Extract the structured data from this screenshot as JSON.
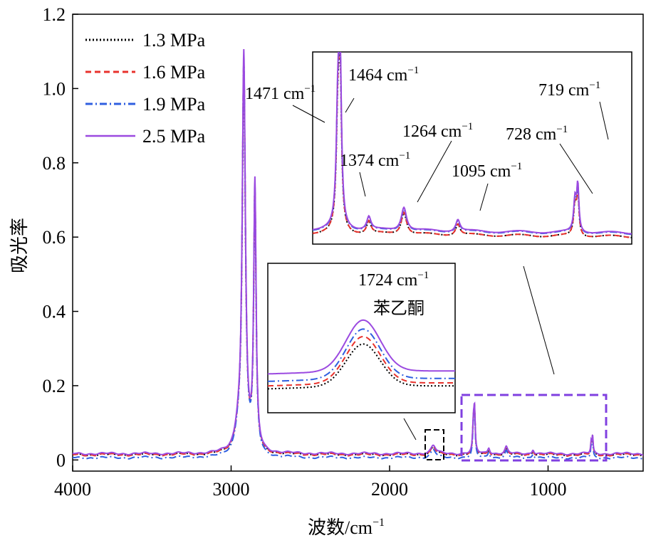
{
  "chart_data": {
    "type": "line",
    "title": "",
    "xlabel": "波数/cm",
    "xlabel_sup": "−1",
    "ylabel": "吸光率",
    "xlim": [
      4000,
      400
    ],
    "ylim": [
      -0.03,
      1.2
    ],
    "x_reversed": true,
    "x_ticks": [
      4000,
      3000,
      2000,
      1000
    ],
    "x_tick_labels": [
      "4000",
      "3000",
      "2000",
      "1000"
    ],
    "y_ticks": [
      0,
      0.2,
      0.4,
      0.6,
      0.8,
      1.0,
      1.2
    ],
    "y_tick_labels": [
      "0",
      "0.2",
      "0.4",
      "0.6",
      "0.8",
      "1.0",
      "1.2"
    ],
    "legend": {
      "placement": "top-left",
      "entries": [
        "1.3 MPa",
        "1.6 MPa",
        "1.9 MPa",
        "2.5 MPa"
      ]
    },
    "series": [
      {
        "name": "1.3 MPa",
        "color": "#000000",
        "dash": "dotted",
        "baseline": 0.014,
        "peak_scale": 0.96
      },
      {
        "name": "1.6 MPa",
        "color": "#e8322c",
        "dash": "dashed",
        "baseline": 0.014,
        "peak_scale": 0.98
      },
      {
        "name": "1.9 MPa",
        "color": "#2f5fe0",
        "dash": "dashdot",
        "baseline": 0.006,
        "peak_scale": 0.99
      },
      {
        "name": "2.5 MPa",
        "color": "#9b4ae0",
        "dash": "solid",
        "baseline": 0.017,
        "peak_scale": 1.0
      }
    ],
    "peaks": [
      {
        "x": 2920,
        "height": 1.06,
        "width": 12
      },
      {
        "x": 2850,
        "height": 0.71,
        "width": 9
      },
      {
        "x": 2955,
        "height": 0.05,
        "width": 25
      },
      {
        "x": 1724,
        "height": 0.022,
        "width": 18
      },
      {
        "x": 1471,
        "height": 0.075,
        "width": 6
      },
      {
        "x": 1464,
        "height": 0.1,
        "width": 5
      },
      {
        "x": 1374,
        "height": 0.016,
        "width": 8
      },
      {
        "x": 1264,
        "height": 0.018,
        "width": 10
      },
      {
        "x": 1095,
        "height": 0.012,
        "width": 8
      },
      {
        "x": 728,
        "height": 0.03,
        "width": 4
      },
      {
        "x": 719,
        "height": 0.045,
        "width": 4
      }
    ],
    "annotations": [
      {
        "text": "1471 cm",
        "sup": "−1"
      },
      {
        "text": "1464 cm",
        "sup": "−1"
      },
      {
        "text": "1374 cm",
        "sup": "−1"
      },
      {
        "text": "1264 cm",
        "sup": "−1"
      },
      {
        "text": "1095 cm",
        "sup": "−1"
      },
      {
        "text": "728 cm",
        "sup": "−1"
      },
      {
        "text": "719 cm",
        "sup": "−1"
      },
      {
        "text": "1724 cm",
        "sup": "−1"
      },
      {
        "text": "苯乙酮",
        "sup": ""
      }
    ],
    "inset_regions": [
      {
        "name": "carbonyl",
        "x_range": [
          1770,
          1680
        ],
        "box_color": "#000000"
      },
      {
        "name": "fingerprint",
        "x_range": [
          1550,
          550
        ],
        "box_color": "#8040e0"
      }
    ]
  }
}
